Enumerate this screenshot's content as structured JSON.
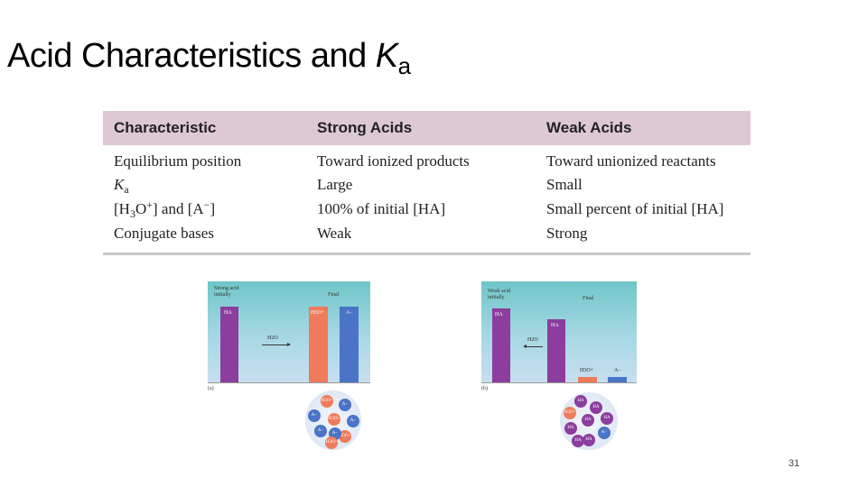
{
  "title": {
    "text": "Acid Characteristics and ",
    "k": "K",
    "a": "a"
  },
  "table": {
    "headers": [
      "Characteristic",
      "Strong Acids",
      "Weak Acids"
    ],
    "rows": [
      {
        "c": "Equilibrium position",
        "s": "Toward ionized products",
        "w": "Toward unionized reactants"
      },
      {
        "c_k": "K",
        "c_a": "a",
        "s": "Large",
        "w": "Small"
      },
      {
        "c_pre": "[H",
        "c_3": "3",
        "c_mid": "O",
        "c_plus": "+",
        "c_and": "] and [A",
        "c_minus": "−",
        "c_end": "]",
        "s": "100% of initial [HA]",
        "w": "Small percent of initial [HA]"
      },
      {
        "c": "Conjugate bases",
        "s": "Weak",
        "w": "Strong"
      }
    ]
  },
  "figure_a": {
    "initial_label_1": "Strong acid",
    "initial_label_2": "initially",
    "final_label": "Final",
    "bar_ha": "HA",
    "bar_h3o": "H3O+",
    "bar_a": "A−",
    "arrow_label": "H2O",
    "caption": "(a)",
    "molecules": [
      "H3O+",
      "A−",
      "A−",
      "H3O+",
      "A−",
      "A−",
      "H3O+",
      "A−",
      "H3O+"
    ]
  },
  "figure_b": {
    "initial_label_1": "Weak acid",
    "initial_label_2": "initially",
    "final_label": "Final",
    "bar_ha": "HA",
    "bar_ha_final": "HA",
    "bar_h3o": "H3O+",
    "bar_a": "A−",
    "arrow_label": "H2O",
    "caption": "(b)",
    "molecules": [
      "HA",
      "HA",
      "H3O+",
      "HA",
      "HA",
      "HA",
      "HA",
      "A−",
      "HA"
    ]
  },
  "page_number": "31"
}
